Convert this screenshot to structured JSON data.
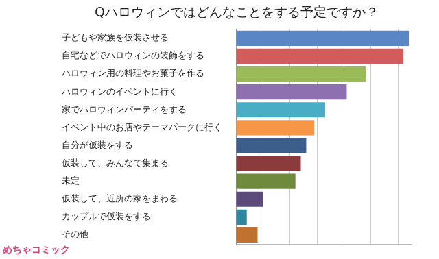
{
  "chart_data": {
    "type": "bar",
    "orientation": "horizontal",
    "title": "Qハロウィンではどんなことをする予定ですか？",
    "categories": [
      "子どもや家族を仮装させる",
      "自宅などでハロウィンの装飾をする",
      "ハロウィン用の料理やお菓子を作る",
      "ハロウィンのイベントに行く",
      "家でハロウィンパーティをする",
      "イベント中のお店やテーマパークに行く",
      "自分が仮装をする",
      "仮装して、みんなで集まる",
      "未定",
      "仮装して、近所の家をまわる",
      "カップルで仮装をする",
      "その他"
    ],
    "values": [
      6.4,
      6.2,
      4.8,
      4.1,
      3.3,
      2.9,
      2.6,
      2.4,
      2.2,
      1.0,
      0.4,
      0.8
    ],
    "colors": [
      "#5b86c5",
      "#d25b5b",
      "#9bbb59",
      "#8e6fb0",
      "#4bacc6",
      "#f79646",
      "#3b5f8a",
      "#8b3b3b",
      "#6f8a3c",
      "#5b4a7a",
      "#2e86a0",
      "#c0702f"
    ],
    "xlim": [
      0,
      6.5
    ],
    "xticks": [
      0,
      1,
      2,
      3,
      4,
      5,
      6
    ],
    "grid": true,
    "tick_labels": "y",
    "data_labels": false,
    "annotations": [
      "めちゃコミック"
    ]
  }
}
